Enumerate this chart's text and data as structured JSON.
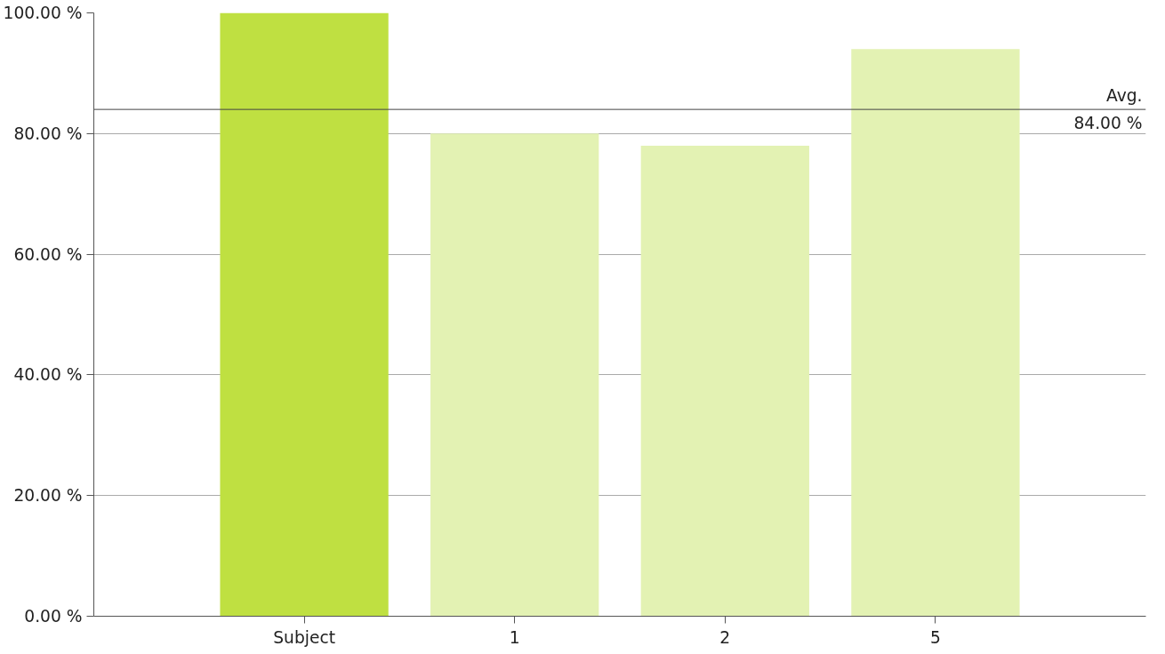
{
  "chart_data": {
    "type": "bar",
    "categories": [
      "Subject",
      "1",
      "2",
      "5"
    ],
    "values": [
      100,
      80,
      78,
      94
    ],
    "colors": [
      "#bfe041",
      "#e3f2b3",
      "#e3f2b3",
      "#e3f2b3"
    ],
    "ylim": [
      0,
      100
    ],
    "yticks": [
      {
        "value": 0,
        "label": "0.00 %"
      },
      {
        "value": 20,
        "label": "20.00 %"
      },
      {
        "value": 40,
        "label": "40.00 %"
      },
      {
        "value": 60,
        "label": "60.00 %"
      },
      {
        "value": 80,
        "label": "80.00 %"
      },
      {
        "value": 100,
        "label": "100.00 %"
      }
    ],
    "grid": "y",
    "ref_lines": [
      {
        "axis": "y",
        "value": 84,
        "label": "Avg.\n84.00 %",
        "color": "#444444"
      }
    ]
  }
}
